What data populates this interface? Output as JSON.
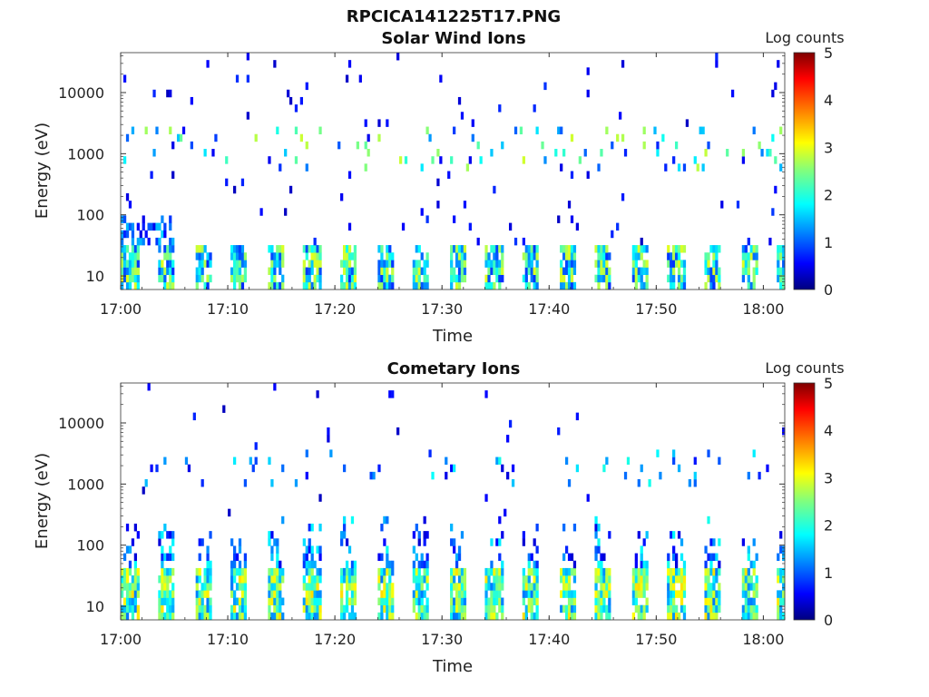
{
  "figure": {
    "title": "RPCICA141225T17.PNG"
  },
  "chart_data": [
    {
      "type": "heatmap",
      "title": "Solar Wind Ions",
      "xlabel": "Time",
      "ylabel": "Energy (eV)",
      "x_range": [
        "17:00",
        "18:02"
      ],
      "y_range": [
        6,
        45000
      ],
      "y_scale": "log",
      "x_ticks": [
        "17:00",
        "17:10",
        "17:20",
        "17:30",
        "17:40",
        "17:50",
        "18:00"
      ],
      "y_ticks": [
        "10",
        "100",
        "1000",
        "10000"
      ],
      "y_tick_values": [
        10,
        100,
        1000,
        10000
      ],
      "colorbar": {
        "label": "Log counts",
        "min": 0,
        "max": 5,
        "ticks": [
          "0",
          "1",
          "2",
          "3",
          "4",
          "5"
        ],
        "colormap": "jet"
      },
      "description_bands": [
        {
          "energy_range": [
            6,
            30
          ],
          "log_counts": [
            1,
            3
          ],
          "pattern": "periodic bursts ~every 3 min"
        },
        {
          "energy_range": [
            500,
            3000
          ],
          "log_counts": [
            1,
            2.8
          ],
          "pattern": "sporadic"
        }
      ]
    },
    {
      "type": "heatmap",
      "title": "Cometary Ions",
      "xlabel": "Time",
      "ylabel": "Energy (eV)",
      "x_range": [
        "17:00",
        "18:02"
      ],
      "y_range": [
        6,
        45000
      ],
      "y_scale": "log",
      "x_ticks": [
        "17:00",
        "17:10",
        "17:20",
        "17:30",
        "17:40",
        "17:50",
        "18:00"
      ],
      "y_ticks": [
        "10",
        "100",
        "1000",
        "10000"
      ],
      "y_tick_values": [
        10,
        100,
        1000,
        10000
      ],
      "colorbar": {
        "label": "Log counts",
        "min": 0,
        "max": 5,
        "ticks": [
          "0",
          "1",
          "2",
          "3",
          "4",
          "5"
        ],
        "colormap": "jet"
      },
      "description_bands": [
        {
          "energy_range": [
            6,
            40
          ],
          "log_counts": [
            1.5,
            3.3
          ],
          "pattern": "periodic bursts ~every 3 min"
        },
        {
          "energy_range": [
            40,
            300
          ],
          "log_counts": [
            0.5,
            2
          ],
          "pattern": "periodic bursts"
        },
        {
          "energy_range": [
            1000,
            4000
          ],
          "log_counts": [
            0.5,
            2
          ],
          "pattern": "sporadic"
        }
      ]
    }
  ]
}
